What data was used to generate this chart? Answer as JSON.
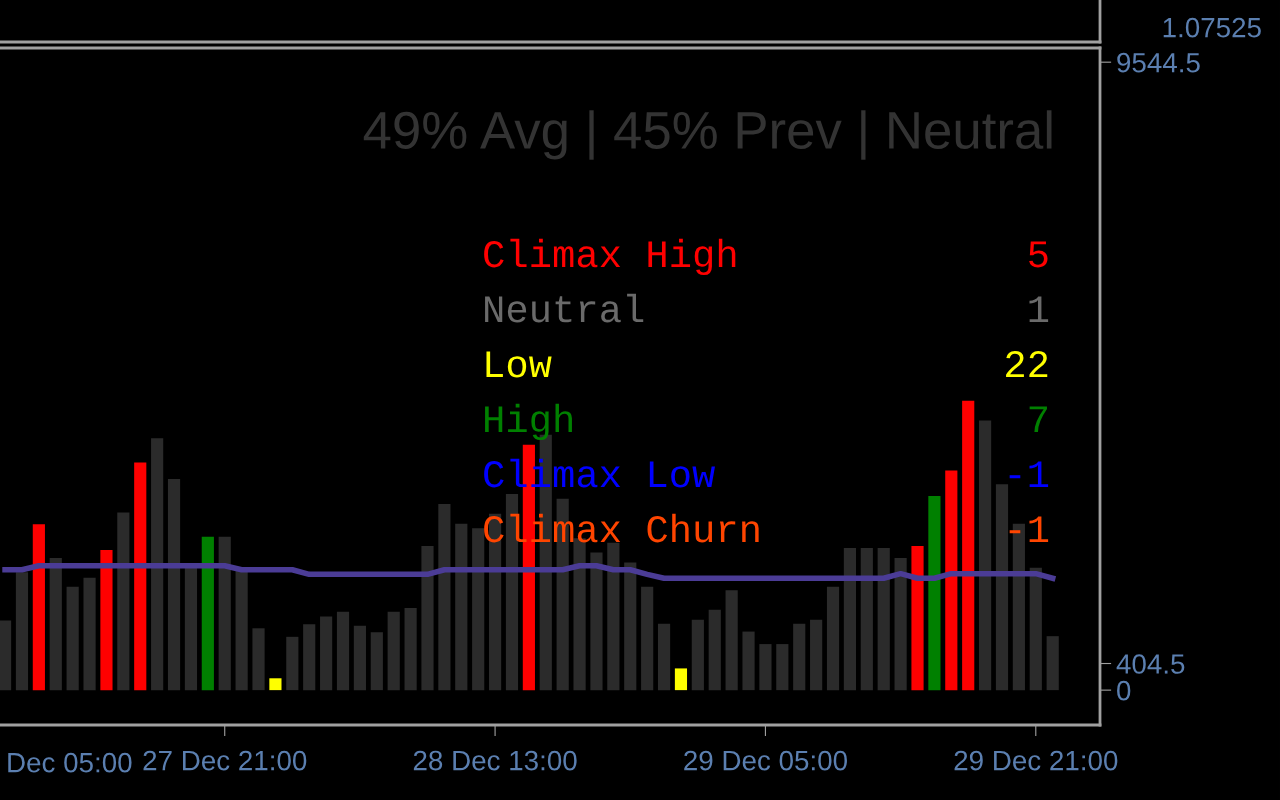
{
  "chart_data": {
    "type": "bar",
    "categories": [
      null,
      null,
      null,
      null,
      null,
      null,
      null,
      null,
      null,
      null,
      null,
      null,
      null,
      "27 Dec 21:00",
      null,
      null,
      null,
      null,
      null,
      null,
      null,
      null,
      null,
      null,
      null,
      null,
      null,
      null,
      null,
      "28 Dec 13:00",
      null,
      null,
      null,
      null,
      null,
      null,
      null,
      null,
      null,
      null,
      null,
      null,
      null,
      null,
      null,
      "29 Dec 05:00",
      null,
      null,
      null,
      null,
      null,
      null,
      null,
      null,
      null,
      null,
      null,
      null,
      null,
      null,
      null,
      "29 Dec 21:00",
      null
    ],
    "series": [
      {
        "values": [
          1060,
          1790,
          2520,
          2010,
          1570,
          1710,
          2130,
          2700,
          3460,
          3830,
          3210,
          1860,
          2330,
          2330,
          1820,
          940,
          180,
          810,
          1000,
          1120,
          1190,
          980,
          880,
          1190,
          1250,
          2190,
          2830,
          2530,
          2460,
          2680,
          2980,
          3730,
          3880,
          2910,
          2310,
          2090,
          2240,
          1940,
          1570,
          1010,
          330,
          1070,
          1220,
          1520,
          890,
          700,
          700,
          1010,
          1070,
          1570,
          2160,
          2160,
          2160,
          2010,
          2190,
          2950,
          3340,
          4400,
          4100,
          3130,
          2530,
          1860,
          820
        ],
        "colors": [
          "#2b2b2b",
          "#2b2b2b",
          "#ff0000",
          "#2b2b2b",
          "#2b2b2b",
          "#2b2b2b",
          "#ff0000",
          "#2b2b2b",
          "#ff0000",
          "#2b2b2b",
          "#2b2b2b",
          "#2b2b2b",
          "#008000",
          "#2b2b2b",
          "#2b2b2b",
          "#2b2b2b",
          "#ffff00",
          "#2b2b2b",
          "#2b2b2b",
          "#2b2b2b",
          "#2b2b2b",
          "#2b2b2b",
          "#2b2b2b",
          "#2b2b2b",
          "#2b2b2b",
          "#2b2b2b",
          "#2b2b2b",
          "#2b2b2b",
          "#2b2b2b",
          "#2b2b2b",
          "#2b2b2b",
          "#ff0000",
          "#2b2b2b",
          "#2b2b2b",
          "#2b2b2b",
          "#2b2b2b",
          "#2b2b2b",
          "#2b2b2b",
          "#2b2b2b",
          "#2b2b2b",
          "#ffff00",
          "#2b2b2b",
          "#2b2b2b",
          "#2b2b2b",
          "#2b2b2b",
          "#2b2b2b",
          "#2b2b2b",
          "#2b2b2b",
          "#2b2b2b",
          "#2b2b2b",
          "#2b2b2b",
          "#2b2b2b",
          "#2b2b2b",
          "#2b2b2b",
          "#ff0000",
          "#008000",
          "#ff0000",
          "#ff0000",
          "#2b2b2b",
          "#2b2b2b",
          "#2b2b2b",
          "#2b2b2b",
          "#2b2b2b"
        ]
      },
      {
        "type": "line",
        "color": "#4b3c96",
        "values": [
          1830,
          1830,
          1890,
          1890,
          1890,
          1890,
          1890,
          1890,
          1890,
          1890,
          1890,
          1890,
          1890,
          1890,
          1830,
          1830,
          1830,
          1830,
          1760,
          1760,
          1760,
          1760,
          1760,
          1760,
          1760,
          1760,
          1830,
          1830,
          1830,
          1830,
          1830,
          1830,
          1830,
          1830,
          1890,
          1890,
          1830,
          1830,
          1760,
          1700,
          1700,
          1700,
          1700,
          1700,
          1700,
          1700,
          1700,
          1700,
          1700,
          1700,
          1700,
          1700,
          1700,
          1770,
          1700,
          1700,
          1770,
          1770,
          1770,
          1770,
          1770,
          1770,
          1700
        ]
      }
    ],
    "ylim": [
      -530,
      9760
    ],
    "yticks": [
      0,
      404.5,
      9544.5
    ],
    "grid": false,
    "annotations": [
      "49% Avg | 45% Prev | Neutral",
      "Climax High",
      "5",
      "Neutral",
      "1",
      "Low",
      "22",
      "High",
      "7",
      "Climax Low",
      "-1",
      "Climax Churn",
      "-1",
      "Dec 05:00",
      "1.07525"
    ]
  }
}
